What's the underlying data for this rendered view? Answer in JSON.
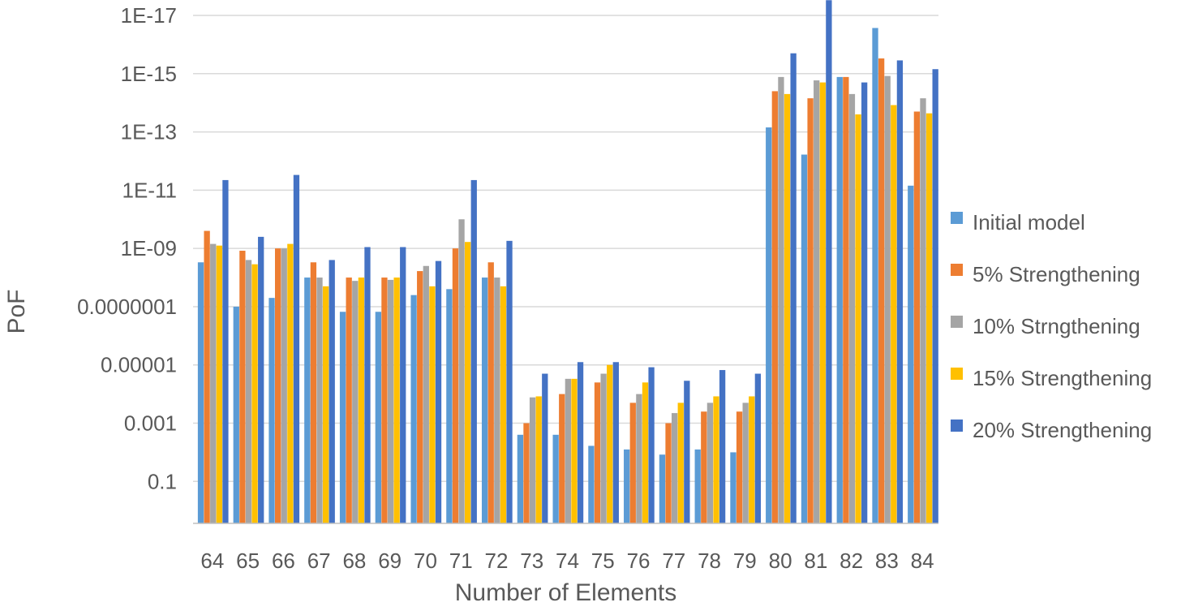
{
  "colors": {
    "grid": "#d9d9d9",
    "axis": "#bfbfbf",
    "text": "#595959",
    "series": [
      "#5b9bd5",
      "#ed7d31",
      "#a5a5a5",
      "#ffc000",
      "#4472c4"
    ]
  },
  "chart_data": {
    "type": "bar",
    "title": "",
    "xlabel": "Number of Elements",
    "ylabel": "PoF",
    "y_scale": "log",
    "y_axis_reversed": true,
    "ylim": [
      1,
      1e-17
    ],
    "yticks": [
      0.1,
      0.001,
      1e-05,
      1e-07,
      1e-09,
      1e-11,
      1e-13,
      1e-15,
      1e-17
    ],
    "ytick_labels": [
      "0.1",
      "0.001",
      "0.00001",
      "0.0000001",
      "1E-09",
      "1E-11",
      "1E-13",
      "1E-15",
      "1E-17"
    ],
    "grid": true,
    "legend_position": "right",
    "categories": [
      "64",
      "65",
      "66",
      "67",
      "68",
      "69",
      "70",
      "71",
      "72",
      "73",
      "74",
      "75",
      "76",
      "77",
      "78",
      "79",
      "80",
      "81",
      "82",
      "83",
      "84"
    ],
    "series": [
      {
        "name": "Initial model",
        "values": [
          3e-09,
          1e-07,
          5e-08,
          1e-08,
          1.5e-07,
          1.5e-07,
          4e-08,
          2.5e-08,
          1e-08,
          0.0025,
          0.0025,
          0.006,
          0.008,
          0.012,
          0.008,
          0.01,
          7e-14,
          6e-13,
          1.3e-15,
          2.7e-17,
          7e-12
        ]
      },
      {
        "name": "5% Strengthening",
        "values": [
          2.5e-10,
          1.2e-09,
          1e-09,
          3e-09,
          1e-08,
          1e-08,
          6e-09,
          1e-09,
          3e-09,
          0.001,
          0.0001,
          4e-05,
          0.0002,
          0.001,
          0.0004,
          0.0004,
          4e-15,
          7e-15,
          1.3e-15,
          3e-16,
          2e-14
        ]
      },
      {
        "name": "10% Strngthening",
        "values": [
          7e-10,
          2.5e-09,
          1e-09,
          1e-08,
          1.3e-08,
          1.2e-08,
          4e-09,
          1e-10,
          1e-08,
          0.00013,
          3e-05,
          2e-05,
          0.0001,
          0.00045,
          0.0002,
          0.0002,
          1.3e-15,
          1.7e-15,
          5e-15,
          1.2e-15,
          7e-15
        ]
      },
      {
        "name": "15% Strengthening",
        "values": [
          8e-10,
          3.5e-09,
          7e-10,
          2e-08,
          1e-08,
          1e-08,
          2e-08,
          6e-10,
          2e-08,
          0.00012,
          3e-05,
          1e-05,
          4e-05,
          0.0002,
          0.00012,
          0.00012,
          5e-15,
          2e-15,
          2.5e-14,
          1.2e-14,
          2.3e-14
        ]
      },
      {
        "name": "20% Strengthening",
        "values": [
          4.5e-12,
          4e-10,
          3e-12,
          2.5e-09,
          9e-10,
          9e-10,
          2.7e-09,
          4.5e-12,
          5.5e-10,
          2e-05,
          8e-06,
          8e-06,
          1.2e-05,
          3.5e-05,
          1.5e-05,
          2e-05,
          2e-16,
          3e-18,
          2e-15,
          3.5e-16,
          7e-16
        ]
      }
    ]
  }
}
